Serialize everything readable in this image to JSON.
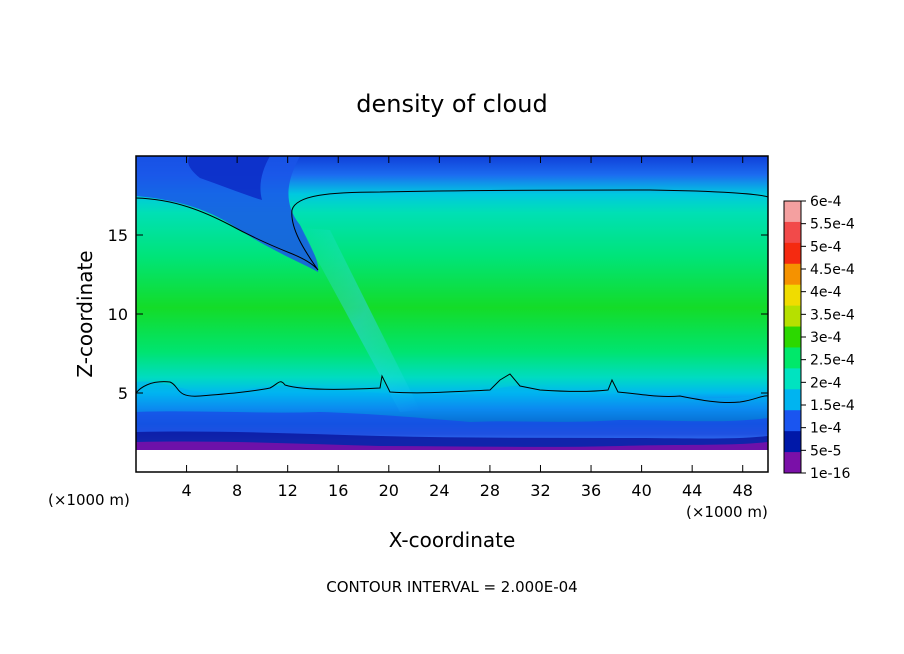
{
  "chart_data": {
    "type": "heatmap",
    "title": "density of cloud",
    "xlabel": "X-coordinate",
    "ylabel": "Z-coordinate",
    "x_unit": "(×1000 m)",
    "z_unit": "(×1000 m)",
    "xlim": [
      0,
      50
    ],
    "ylim": [
      0,
      20
    ],
    "x_ticks": [
      4,
      8,
      12,
      16,
      20,
      24,
      28,
      32,
      36,
      40,
      44,
      48
    ],
    "y_ticks": [
      5,
      10,
      15
    ],
    "colorbar": {
      "labels": [
        "6e-4",
        "5.5e-4",
        "5e-4",
        "4.5e-4",
        "4e-4",
        "3.5e-4",
        "3e-4",
        "2.5e-4",
        "2e-4",
        "1.5e-4",
        "1e-4",
        "5e-5",
        "1e-16"
      ],
      "colors": [
        "#f4a0a0",
        "#f24a4a",
        "#f52a10",
        "#f59200",
        "#f0dc00",
        "#b6e000",
        "#2cd800",
        "#00e86a",
        "#00e3c0",
        "#00b4f0",
        "#1a55f0",
        "#0018a8",
        "#7a10a8"
      ]
    },
    "annotation": "CONTOUR INTERVAL = 2.000E-04",
    "grid": false
  }
}
